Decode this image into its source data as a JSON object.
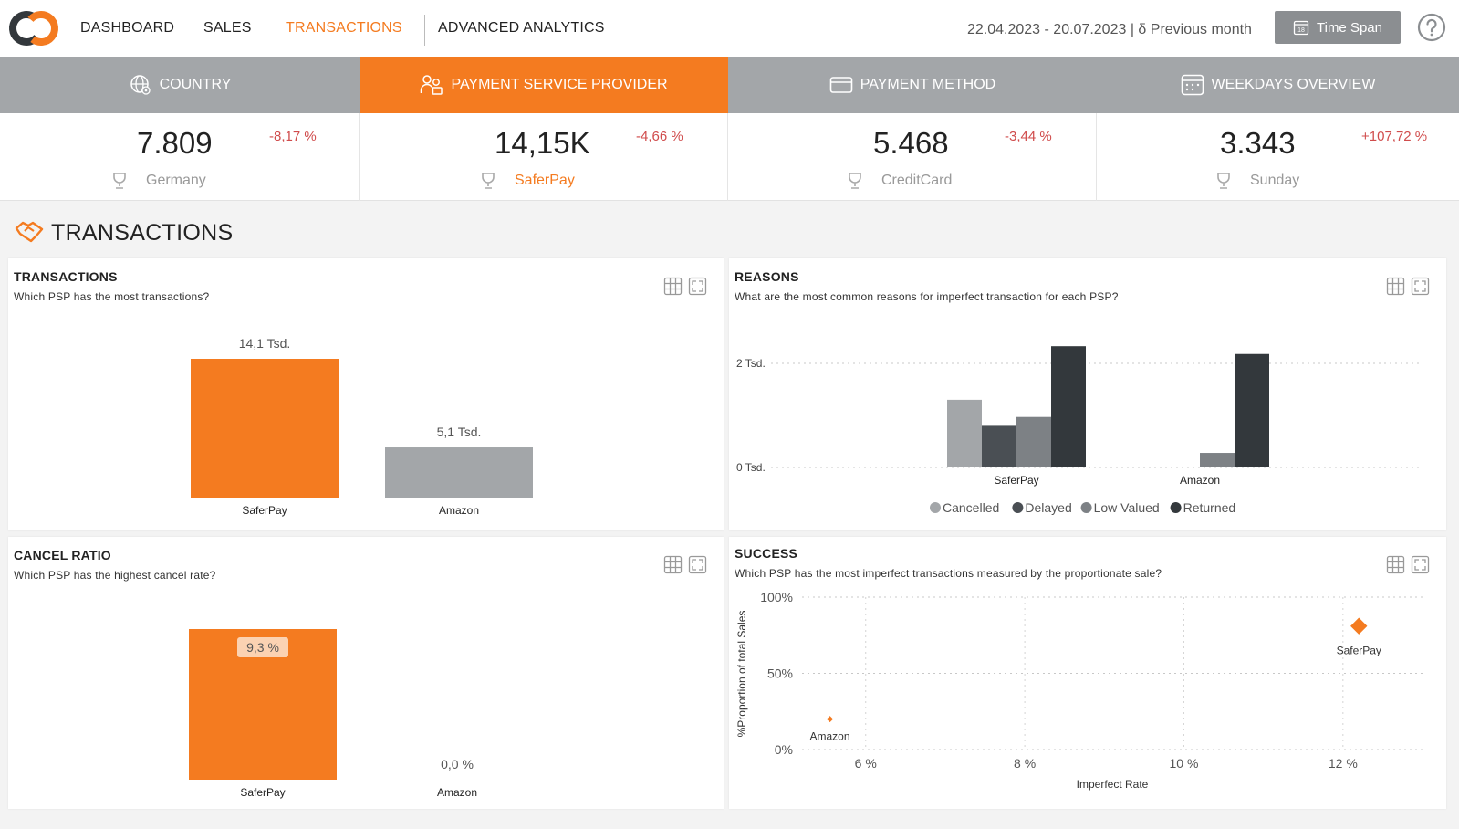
{
  "nav": {
    "items": [
      {
        "label": "DASHBOARD",
        "active": false
      },
      {
        "label": "SALES",
        "active": false
      },
      {
        "label": "TRANSACTIONS",
        "active": true
      },
      {
        "label": "ADVANCED ANALYTICS",
        "active": false
      }
    ],
    "date_range": "22.04.2023 - 20.07.2023 | δ Previous month",
    "time_span_label": "Time Span",
    "calendar_day": "18"
  },
  "tabs": [
    {
      "label": "COUNTRY",
      "icon": "globe-icon",
      "active": false
    },
    {
      "label": "PAYMENT SERVICE PROVIDER",
      "icon": "people-icon",
      "active": true
    },
    {
      "label": "PAYMENT METHOD",
      "icon": "credit-card-icon",
      "active": false
    },
    {
      "label": "WEEKDAYS OVERVIEW",
      "icon": "calendar-icon",
      "active": false
    }
  ],
  "kpis": [
    {
      "value": "7.809",
      "change": "-8,17 %",
      "top": "Germany",
      "highlight": false
    },
    {
      "value": "14,15K",
      "change": "-4,66 %",
      "top": "SaferPay",
      "highlight": true
    },
    {
      "value": "5.468",
      "change": "-3,44 %",
      "top": "CreditCard",
      "highlight": false
    },
    {
      "value": "3.343",
      "change": "+107,72 %",
      "top": "Sunday",
      "highlight": false
    }
  ],
  "section": {
    "title": "TRANSACTIONS"
  },
  "colors": {
    "accent": "#f47b20",
    "grey": "#a3a6a9",
    "dark": "#33383c",
    "red": "#d04c4c"
  },
  "cards": {
    "transactions": {
      "title": "TRANSACTIONS",
      "subtitle": "Which PSP has the most transactions?"
    },
    "reasons": {
      "title": "REASONS",
      "subtitle": "What are the most common reasons for imperfect transaction for each PSP?"
    },
    "cancel_ratio": {
      "title": "CANCEL RATIO",
      "subtitle": "Which PSP has the highest cancel rate?"
    },
    "success": {
      "title": "SUCCESS",
      "subtitle": "Which PSP has the most imperfect transactions measured by the proportionate sale?"
    }
  },
  "chart_data": [
    {
      "id": "transactions",
      "type": "bar",
      "categories": [
        "SaferPay",
        "Amazon"
      ],
      "values": [
        14100,
        5100
      ],
      "data_labels": [
        "14,1 Tsd.",
        "5,1 Tsd."
      ],
      "colors": [
        "#f47b20",
        "#a3a6a9"
      ],
      "ylim": [
        0,
        14100
      ]
    },
    {
      "id": "reasons",
      "type": "bar",
      "categories": [
        "SaferPay",
        "Amazon"
      ],
      "series": [
        {
          "name": "Cancelled",
          "color": "#a3a6a9",
          "values": [
            1300,
            0
          ]
        },
        {
          "name": "Delayed",
          "color": "#4a4f54",
          "values": [
            800,
            0
          ]
        },
        {
          "name": "Low Valued",
          "color": "#7d8185",
          "values": [
            970,
            280
          ]
        },
        {
          "name": "Returned",
          "color": "#33383c",
          "values": [
            2330,
            2180
          ]
        }
      ],
      "yticks": [
        {
          "value": 0,
          "label": "0 Tsd."
        },
        {
          "value": 2000,
          "label": "2 Tsd."
        }
      ],
      "ylim": [
        0,
        2330
      ]
    },
    {
      "id": "cancel_ratio",
      "type": "bar",
      "categories": [
        "SaferPay",
        "Amazon"
      ],
      "values": [
        9.3,
        0.0
      ],
      "data_labels": [
        "9,3 %",
        "0,0 %"
      ],
      "colors": [
        "#f47b20",
        "#a3a6a9"
      ],
      "ylim": [
        0,
        9.3
      ]
    },
    {
      "id": "success",
      "type": "scatter",
      "xlabel": "Imperfect Rate",
      "ylabel": "%Proportion of total Sales",
      "xlim": [
        5.2,
        13.0
      ],
      "ylim": [
        0,
        100
      ],
      "xticks": [
        {
          "value": 6,
          "label": "6 %"
        },
        {
          "value": 8,
          "label": "8 %"
        },
        {
          "value": 10,
          "label": "10 %"
        },
        {
          "value": 12,
          "label": "12 %"
        }
      ],
      "yticks": [
        {
          "value": 0,
          "label": "0%"
        },
        {
          "value": 50,
          "label": "50%"
        },
        {
          "value": 100,
          "label": "100%"
        }
      ],
      "points": [
        {
          "label": "Amazon",
          "x": 5.55,
          "y": 20,
          "size": "small"
        },
        {
          "label": "SaferPay",
          "x": 12.2,
          "y": 81,
          "size": "large"
        }
      ],
      "color": "#f47b20"
    }
  ]
}
